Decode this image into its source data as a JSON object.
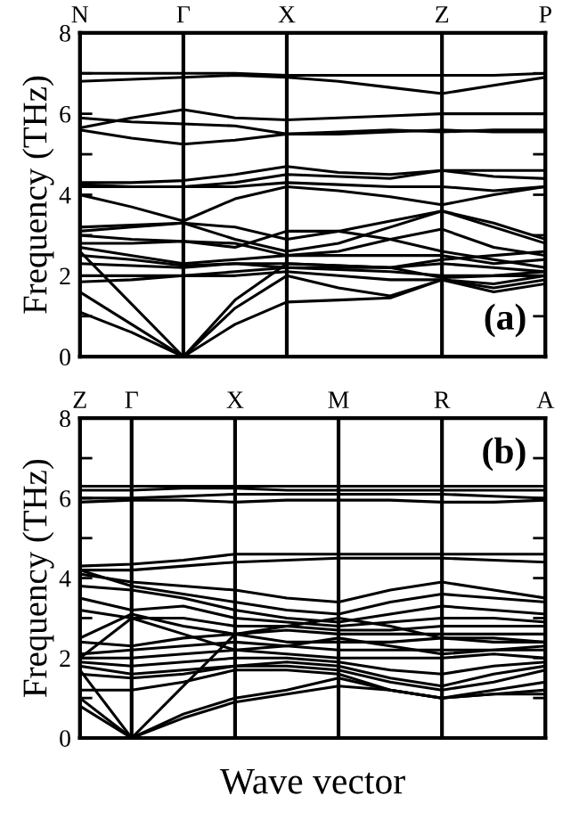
{
  "chart_data": [
    {
      "type": "line",
      "ylabel": "Frequency (THz)",
      "annotations": [
        "(a)"
      ],
      "grid": "x",
      "legend": false,
      "categories": [
        "N",
        null,
        "Γ",
        null,
        "X",
        null,
        null,
        "Z",
        null,
        "P"
      ],
      "ylim": [
        0,
        8
      ],
      "yticks": [
        0,
        {
          "value": 1,
          "label": null
        },
        2,
        {
          "value": 3,
          "label": null
        },
        4,
        {
          "value": 5,
          "label": null
        },
        6,
        {
          "value": 7,
          "label": null
        },
        8
      ],
      "series": [
        {
          "color": "#000000",
          "values": [
            7.0,
            7.0,
            7.0,
            7.0,
            6.95,
            6.95,
            6.95,
            6.95,
            6.95,
            7.0
          ]
        },
        {
          "color": "#000000",
          "values": [
            6.8,
            6.85,
            6.9,
            6.95,
            6.9,
            6.8,
            6.65,
            6.5,
            6.7,
            6.9
          ]
        },
        {
          "color": "#000000",
          "values": [
            5.65,
            5.9,
            6.1,
            5.9,
            5.85,
            5.9,
            5.95,
            6.0,
            6.0,
            6.0
          ]
        },
        {
          "color": "#000000",
          "values": [
            5.9,
            5.8,
            5.75,
            5.7,
            5.5,
            5.5,
            5.55,
            5.6,
            5.55,
            5.55
          ]
        },
        {
          "color": "#000000",
          "values": [
            5.6,
            5.4,
            5.25,
            5.35,
            5.5,
            5.55,
            5.6,
            5.55,
            5.6,
            5.6
          ]
        },
        {
          "color": "#000000",
          "values": [
            4.3,
            4.3,
            4.35,
            4.5,
            4.7,
            4.55,
            4.5,
            4.6,
            4.6,
            4.6
          ]
        },
        {
          "color": "#000000",
          "values": [
            4.25,
            4.2,
            4.2,
            4.3,
            4.5,
            4.45,
            4.4,
            4.6,
            4.45,
            4.4
          ]
        },
        {
          "color": "#000000",
          "values": [
            4.2,
            4.2,
            4.2,
            4.2,
            4.3,
            4.25,
            4.2,
            4.2,
            4.1,
            4.2
          ]
        },
        {
          "color": "#000000",
          "values": [
            4.0,
            3.7,
            3.35,
            3.9,
            4.2,
            4.1,
            3.95,
            3.75,
            4.0,
            4.2
          ]
        },
        {
          "color": "#000000",
          "values": [
            3.2,
            3.25,
            3.3,
            3.2,
            2.9,
            3.1,
            3.35,
            3.6,
            3.3,
            2.9
          ]
        },
        {
          "color": "#000000",
          "values": [
            3.1,
            3.2,
            3.3,
            2.9,
            2.6,
            2.8,
            3.2,
            3.6,
            3.2,
            2.8
          ]
        },
        {
          "color": "#000000",
          "values": [
            3.0,
            2.9,
            2.85,
            2.8,
            2.5,
            2.6,
            2.9,
            3.15,
            2.7,
            2.5
          ]
        },
        {
          "color": "#000000",
          "values": [
            2.8,
            2.8,
            2.85,
            2.7,
            3.1,
            3.1,
            2.9,
            2.6,
            2.4,
            2.2
          ]
        },
        {
          "color": "#000000",
          "values": [
            2.7,
            2.5,
            2.3,
            2.4,
            2.5,
            2.5,
            2.5,
            2.5,
            2.3,
            2.4
          ]
        },
        {
          "color": "#000000",
          "values": [
            2.5,
            2.4,
            2.25,
            2.3,
            2.3,
            2.25,
            2.2,
            2.4,
            2.5,
            2.6
          ]
        },
        {
          "color": "#000000",
          "values": [
            2.3,
            2.25,
            2.2,
            2.3,
            2.2,
            2.2,
            2.2,
            2.3,
            2.2,
            2.1
          ]
        },
        {
          "color": "#000000",
          "values": [
            2.0,
            2.0,
            2.0,
            2.1,
            2.2,
            2.15,
            2.1,
            2.0,
            2.0,
            2.0
          ]
        },
        {
          "color": "#000000",
          "values": [
            1.85,
            1.9,
            2.0,
            2.0,
            2.1,
            2.0,
            1.9,
            1.9,
            1.7,
            1.9
          ]
        },
        {
          "color": "#000000",
          "values": [
            1.6,
            0.8,
            0,
            1.2,
            2.0,
            1.7,
            1.5,
            1.9,
            1.8,
            2.0
          ]
        },
        {
          "color": "#000000",
          "values": [
            1.1,
            0.6,
            0,
            0.8,
            1.35,
            1.4,
            1.45,
            1.9,
            1.6,
            1.8
          ]
        },
        {
          "color": "#000000",
          "values": [
            2.6,
            1.3,
            0,
            1.4,
            2.3,
            2.25,
            2.2,
            1.95,
            2.0,
            2.1
          ]
        }
      ]
    },
    {
      "type": "line",
      "ylabel": "Frequency (THz)",
      "xlabel": "Wave vector",
      "annotations": [
        "(b)"
      ],
      "grid": "x",
      "legend": false,
      "categories": [
        "Z",
        "Γ",
        null,
        "X",
        null,
        "M",
        null,
        "R",
        null,
        "A"
      ],
      "ylim": [
        0,
        8
      ],
      "yticks": [
        0,
        {
          "value": 1,
          "label": null
        },
        2,
        {
          "value": 3,
          "label": null
        },
        4,
        {
          "value": 5,
          "label": null
        },
        6,
        {
          "value": 7,
          "label": null
        },
        8
      ],
      "series": [
        {
          "color": "#000000",
          "values": [
            6.3,
            6.3,
            6.3,
            6.3,
            6.3,
            6.3,
            6.3,
            6.3,
            6.3,
            6.3
          ]
        },
        {
          "color": "#000000",
          "values": [
            6.2,
            6.2,
            6.25,
            6.25,
            6.2,
            6.2,
            6.2,
            6.2,
            6.2,
            6.2
          ]
        },
        {
          "color": "#000000",
          "values": [
            6.0,
            6.0,
            6.05,
            6.1,
            6.1,
            6.1,
            6.1,
            6.1,
            6.05,
            6.0
          ]
        },
        {
          "color": "#000000",
          "values": [
            5.9,
            5.95,
            5.95,
            5.9,
            5.95,
            5.95,
            5.95,
            5.9,
            5.9,
            5.95
          ]
        },
        {
          "color": "#000000",
          "values": [
            4.3,
            4.35,
            4.45,
            4.6,
            4.6,
            4.6,
            4.6,
            4.6,
            4.6,
            4.6
          ]
        },
        {
          "color": "#000000",
          "values": [
            4.2,
            4.2,
            4.3,
            4.4,
            4.45,
            4.5,
            4.5,
            4.5,
            4.45,
            4.4
          ]
        },
        {
          "color": "#000000",
          "values": [
            4.1,
            3.9,
            3.8,
            3.7,
            3.5,
            3.4,
            3.7,
            3.9,
            3.7,
            3.5
          ]
        },
        {
          "color": "#000000",
          "values": [
            4.2,
            3.8,
            3.6,
            3.4,
            3.2,
            3.1,
            3.4,
            3.6,
            3.5,
            3.4
          ]
        },
        {
          "color": "#000000",
          "values": [
            3.8,
            3.7,
            3.5,
            3.2,
            3.0,
            2.9,
            3.1,
            3.3,
            3.2,
            3.1
          ]
        },
        {
          "color": "#000000",
          "values": [
            3.5,
            3.2,
            3.3,
            3.0,
            2.9,
            2.8,
            2.9,
            3.0,
            3.0,
            2.9
          ]
        },
        {
          "color": "#000000",
          "values": [
            3.2,
            3.0,
            3.0,
            2.8,
            2.8,
            2.7,
            2.7,
            2.8,
            2.8,
            2.8
          ]
        },
        {
          "color": "#000000",
          "values": [
            2.5,
            3.1,
            2.8,
            2.6,
            2.7,
            2.6,
            2.6,
            2.6,
            2.6,
            2.6
          ]
        },
        {
          "color": "#000000",
          "values": [
            2.4,
            2.3,
            2.5,
            2.6,
            2.4,
            2.4,
            2.4,
            2.5,
            2.4,
            2.4
          ]
        },
        {
          "color": "#000000",
          "values": [
            2.1,
            2.2,
            2.3,
            2.4,
            2.3,
            2.2,
            2.2,
            2.2,
            2.2,
            2.2
          ]
        },
        {
          "color": "#000000",
          "values": [
            2.0,
            2.0,
            2.1,
            2.2,
            2.1,
            2.0,
            2.0,
            2.0,
            2.1,
            2.0
          ]
        },
        {
          "color": "#000000",
          "values": [
            1.9,
            1.8,
            1.9,
            2.0,
            2.0,
            1.9,
            1.7,
            1.6,
            1.8,
            1.9
          ]
        },
        {
          "color": "#000000",
          "values": [
            1.8,
            1.6,
            1.7,
            1.8,
            1.9,
            1.8,
            1.5,
            1.3,
            1.6,
            1.8
          ]
        },
        {
          "color": "#000000",
          "values": [
            1.6,
            1.5,
            1.6,
            1.8,
            1.8,
            1.7,
            1.4,
            1.2,
            1.4,
            1.7
          ]
        },
        {
          "color": "#000000",
          "values": [
            1.2,
            1.2,
            1.4,
            1.7,
            1.7,
            1.6,
            1.2,
            1.0,
            1.2,
            1.4
          ]
        },
        {
          "color": "#000000",
          "values": [
            2.0,
            3.0,
            2.6,
            2.2,
            2.3,
            2.5,
            2.3,
            2.1,
            2.2,
            2.3
          ]
        },
        {
          "color": "#000000",
          "values": [
            1.7,
            0,
            1.3,
            2.6,
            2.8,
            3.0,
            2.8,
            2.5,
            2.5,
            2.4
          ]
        },
        {
          "color": "#000000",
          "values": [
            1.0,
            0,
            0.6,
            1.0,
            1.2,
            1.5,
            1.2,
            1.0,
            1.1,
            1.2
          ]
        },
        {
          "color": "#000000",
          "values": [
            0.8,
            0,
            0.5,
            0.9,
            1.1,
            1.3,
            1.2,
            1.0,
            1.1,
            1.1
          ]
        }
      ]
    }
  ]
}
